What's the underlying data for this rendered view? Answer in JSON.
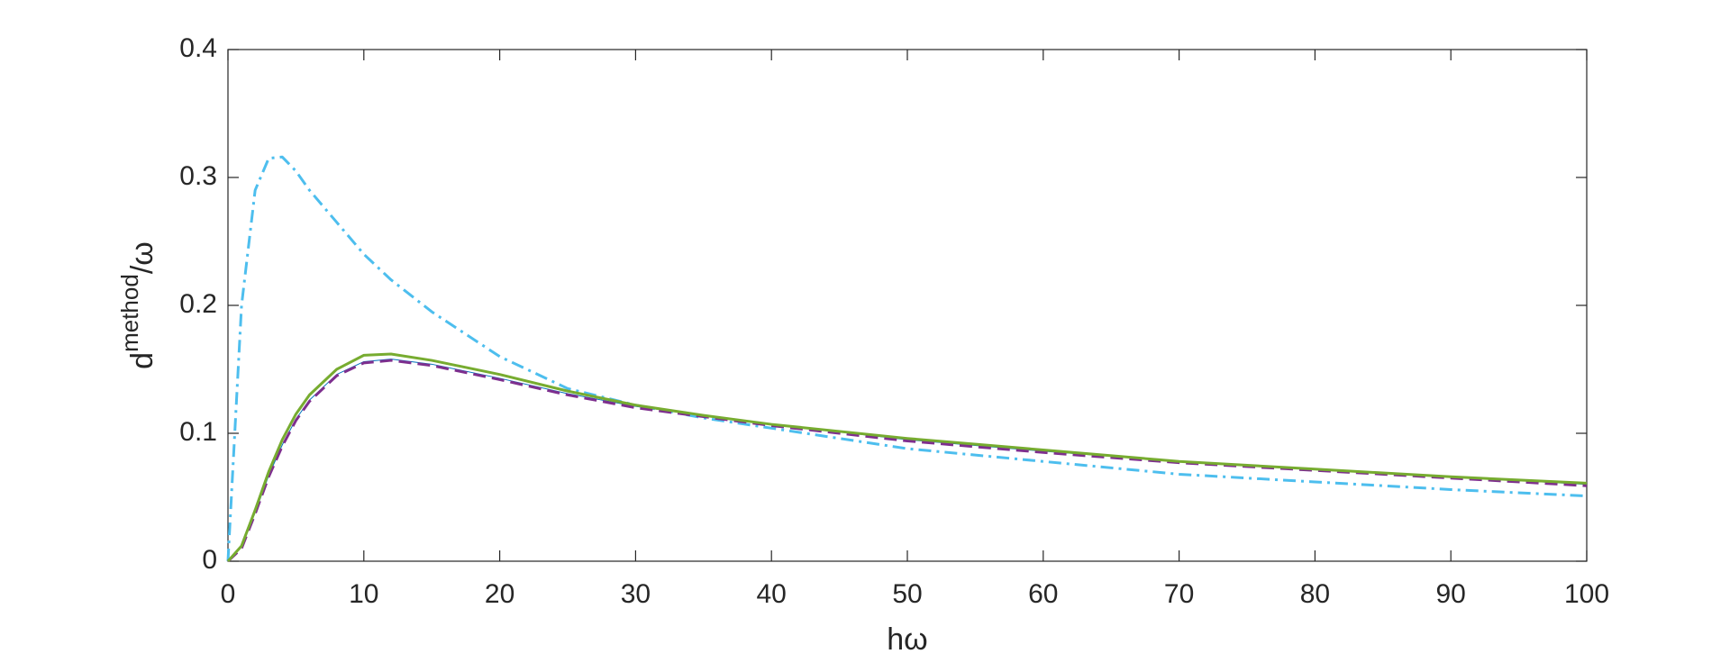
{
  "chart_data": {
    "type": "line",
    "xlabel": "hω",
    "ylabel": {
      "base": "d",
      "sup": "method",
      "tail": "/ω"
    },
    "x": [
      0,
      1,
      2,
      3,
      4,
      5,
      6,
      8,
      10,
      12,
      15,
      20,
      25,
      30,
      35,
      40,
      50,
      60,
      70,
      80,
      90,
      100
    ],
    "series": [
      {
        "color": "#4dbeee",
        "style": "dashdot",
        "width": 3,
        "values": [
          0,
          0.2,
          0.29,
          0.315,
          0.316,
          0.305,
          0.29,
          0.265,
          0.24,
          0.22,
          0.195,
          0.16,
          0.135,
          0.122,
          0.112,
          0.104,
          0.088,
          0.078,
          0.068,
          0.062,
          0.056,
          0.051
        ]
      },
      {
        "color": "#0072bd",
        "style": "solid",
        "width": 1,
        "values": [
          0,
          0.011,
          0.038,
          0.067,
          0.091,
          0.111,
          0.126,
          0.146,
          0.156,
          0.158,
          0.154,
          0.143,
          0.131,
          0.121,
          0.114,
          0.107,
          0.095,
          0.086,
          0.078,
          0.072,
          0.066,
          0.06
        ]
      },
      {
        "color": "#7e2f8e",
        "style": "dashed",
        "width": 3,
        "values": [
          0,
          0.01,
          0.037,
          0.066,
          0.09,
          0.11,
          0.125,
          0.145,
          0.155,
          0.157,
          0.153,
          0.142,
          0.13,
          0.12,
          0.113,
          0.106,
          0.094,
          0.085,
          0.077,
          0.071,
          0.065,
          0.059
        ]
      },
      {
        "color": "#77ac30",
        "style": "solid",
        "width": 3,
        "values": [
          0,
          0.012,
          0.04,
          0.07,
          0.095,
          0.115,
          0.13,
          0.15,
          0.161,
          0.162,
          0.157,
          0.146,
          0.133,
          0.122,
          0.114,
          0.107,
          0.096,
          0.087,
          0.078,
          0.072,
          0.066,
          0.061
        ]
      }
    ],
    "xlim": [
      0,
      100
    ],
    "xticks": [
      0,
      10,
      20,
      30,
      40,
      50,
      60,
      70,
      80,
      90,
      100
    ],
    "ylim": [
      0,
      0.4
    ],
    "yticks": [
      0,
      0.1,
      0.2,
      0.3,
      0.4
    ],
    "grid": false
  }
}
